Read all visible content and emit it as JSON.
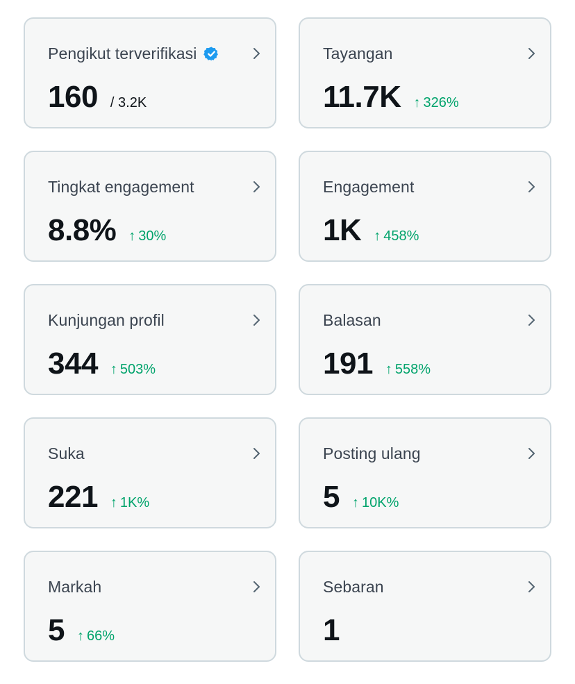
{
  "colors": {
    "card_bg": "#f6f7f7",
    "card_border": "#cfd9de",
    "label": "#3b4450",
    "value": "#0f1419",
    "positive": "#00a36b",
    "verified": "#1d9bf0"
  },
  "cards": [
    {
      "label": "Pengikut terverifikasi",
      "value": "160",
      "sub": "/ 3.2K",
      "icon": "verified-badge-icon"
    },
    {
      "label": "Tayangan",
      "value": "11.7K",
      "change_arrow": "↑",
      "change": "326%"
    },
    {
      "label": "Tingkat engagement",
      "value": "8.8%",
      "change_arrow": "↑",
      "change": "30%"
    },
    {
      "label": "Engagement",
      "value": "1K",
      "change_arrow": "↑",
      "change": "458%"
    },
    {
      "label": "Kunjungan profil",
      "value": "344",
      "change_arrow": "↑",
      "change": "503%"
    },
    {
      "label": "Balasan",
      "value": "191",
      "change_arrow": "↑",
      "change": "558%"
    },
    {
      "label": "Suka",
      "value": "221",
      "change_arrow": "↑",
      "change": "1K%"
    },
    {
      "label": "Posting ulang",
      "value": "5",
      "change_arrow": "↑",
      "change": "10K%"
    },
    {
      "label": "Markah",
      "value": "5",
      "change_arrow": "↑",
      "change": "66%"
    },
    {
      "label": "Sebaran",
      "value": "1"
    }
  ]
}
